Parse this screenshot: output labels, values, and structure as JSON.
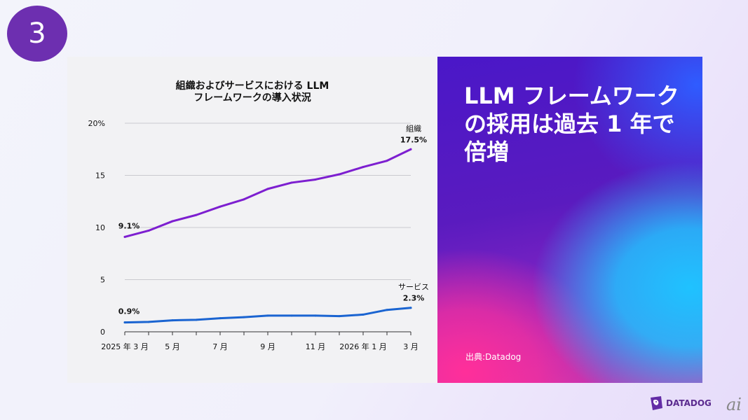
{
  "slide_number": "3",
  "hero": {
    "title_lines": [
      "LLM フレームワーク",
      "の採用は過去 1 年で",
      "倍増"
    ],
    "source": "出典:Datadog"
  },
  "brand": {
    "name": "DATADOG",
    "logo_icon": "datadog-dog-icon"
  },
  "corner_mark": "ai",
  "colors": {
    "organizations": "#7d1fd0",
    "services": "#1a64d1",
    "badge": "#6d2fb0"
  },
  "chart_data": {
    "type": "line",
    "title_lines": [
      "組織およびサービスにおける LLM",
      "フレームワークの導入状況"
    ],
    "y_ticks": [
      "0",
      "5",
      "10",
      "15",
      "20%"
    ],
    "y_tick_values": [
      0,
      5,
      10,
      15,
      20
    ],
    "ylim": [
      0,
      20
    ],
    "x": [
      0,
      1,
      2,
      3,
      4,
      5,
      6,
      7,
      8,
      9,
      10,
      11,
      12
    ],
    "x_tick_labels": [
      {
        "x": 0,
        "label": "2025 年 3 月"
      },
      {
        "x": 2,
        "label": "5 月"
      },
      {
        "x": 4,
        "label": "7 月"
      },
      {
        "x": 6,
        "label": "9 月"
      },
      {
        "x": 8,
        "label": "11 月"
      },
      {
        "x": 10,
        "label": "2026 年 1 月"
      },
      {
        "x": 12,
        "label": "3 月"
      }
    ],
    "grid": true,
    "series": [
      {
        "name": "組織",
        "color": "#7d1fd0",
        "values": [
          9.1,
          9.7,
          10.6,
          11.2,
          12.0,
          12.7,
          13.7,
          14.3,
          14.6,
          15.1,
          15.8,
          16.4,
          17.5
        ],
        "start_label": "9.1%",
        "end_label": "17.5%"
      },
      {
        "name": "サービス",
        "color": "#1a64d1",
        "values": [
          0.9,
          0.95,
          1.1,
          1.15,
          1.3,
          1.4,
          1.55,
          1.55,
          1.55,
          1.5,
          1.65,
          2.1,
          2.3
        ],
        "start_label": "0.9%",
        "end_label": "2.3%"
      }
    ]
  }
}
